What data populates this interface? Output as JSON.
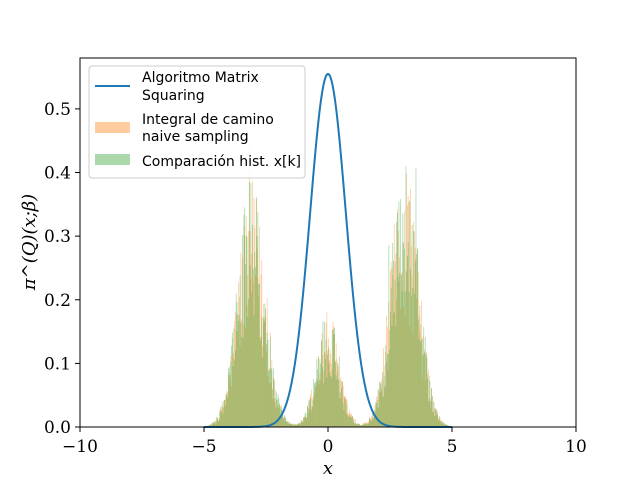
{
  "chart_data": {
    "type": "histogram+line",
    "xlabel": "x",
    "ylabel": "π^(Q)(x;β)",
    "xlim": [
      -10,
      10
    ],
    "ylim": [
      0,
      0.58
    ],
    "xticks": [
      -10,
      -5,
      0,
      5,
      10
    ],
    "xtick_labels": [
      "−10",
      "−5",
      "0",
      "5",
      "10"
    ],
    "yticks": [
      0.0,
      0.1,
      0.2,
      0.3,
      0.4,
      0.5
    ],
    "ytick_labels": [
      "0.0",
      "0.1",
      "0.2",
      "0.3",
      "0.4",
      "0.5"
    ],
    "grid": false,
    "legend_position": "top-left",
    "series": [
      {
        "name_lines": [
          "Algoritmo Matrix",
          "Squaring"
        ],
        "kind": "line",
        "color": "#1f77b4",
        "description_values": {
          "mean": 0.0,
          "peak": 0.555,
          "support": [
            -1.5,
            1.5
          ]
        }
      },
      {
        "name_lines": [
          "Integral de camino",
          "naive sampling"
        ],
        "kind": "histogram",
        "color": "#ff7f0e",
        "alpha": 0.4,
        "bin_range": [
          -5,
          5
        ],
        "peaks": [
          {
            "x": -3.1,
            "height": 0.27
          },
          {
            "x": 0.0,
            "height": 0.13
          },
          {
            "x": 3.1,
            "height": 0.3
          }
        ],
        "max_bar": 0.445
      },
      {
        "name_lines": [
          "Comparación hist. x[k]"
        ],
        "kind": "histogram",
        "color": "#2ca02c",
        "alpha": 0.4,
        "bin_range": [
          -5,
          5
        ],
        "peaks": [
          {
            "x": -3.1,
            "height": 0.27
          },
          {
            "x": 0.0,
            "height": 0.13
          },
          {
            "x": 3.1,
            "height": 0.3
          }
        ],
        "max_bar": 0.41
      }
    ]
  }
}
